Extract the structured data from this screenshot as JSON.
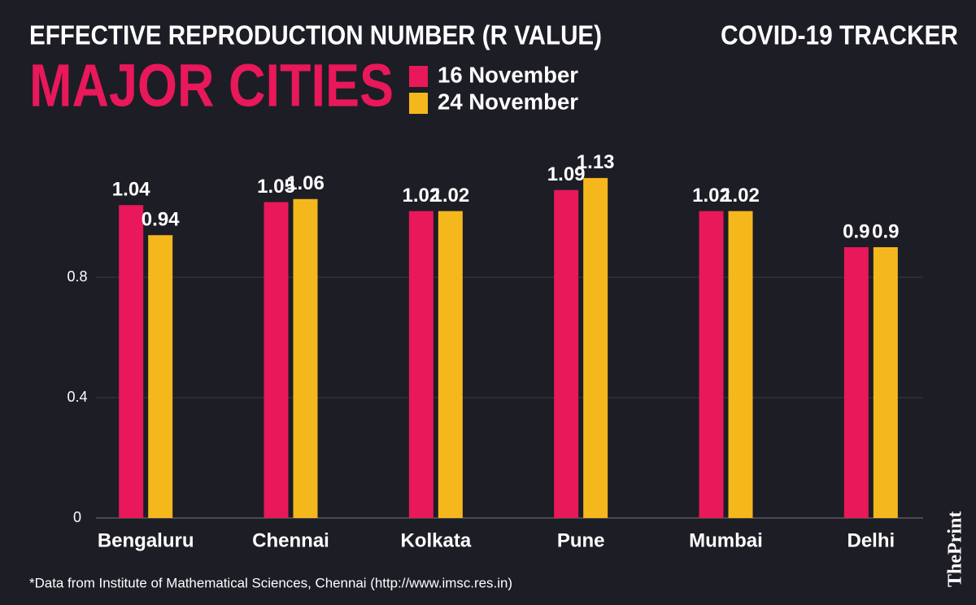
{
  "chart_data": {
    "type": "bar",
    "title": "EFFECTIVE REPRODUCTION NUMBER (R VALUE)",
    "subtitle": "MAJOR CITIES",
    "tracker": "COVID-19 TRACKER",
    "footnote": "*Data from Institute of Mathematical Sciences, Chennai (http://www.imsc.res.in)",
    "logo": "ThePrint",
    "categories": [
      "Bengaluru",
      "Chennai",
      "Kolkata",
      "Pune",
      "Mumbai",
      "Delhi"
    ],
    "series": [
      {
        "name": "16 November",
        "color": "#e8185a",
        "values": [
          1.04,
          1.05,
          1.02,
          1.09,
          1.02,
          0.9
        ]
      },
      {
        "name": "24 November",
        "color": "#f5b81c",
        "values": [
          0.94,
          1.06,
          1.02,
          1.13,
          1.02,
          0.9
        ]
      }
    ],
    "ylim": [
      0,
      1.2
    ],
    "yticks": [
      0,
      0.4,
      0.8
    ],
    "grid": true
  }
}
